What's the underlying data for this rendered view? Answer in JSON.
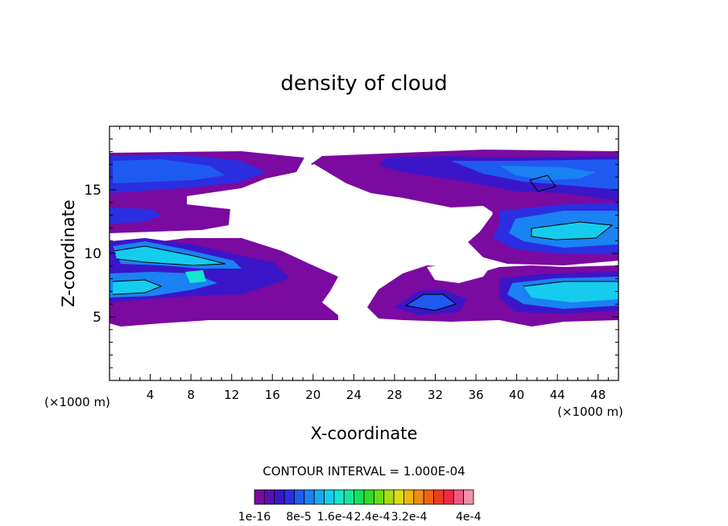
{
  "chart_data": {
    "type": "heatmap",
    "title": "density of cloud",
    "xlabel": "X-coordinate",
    "ylabel": "Z-coordinate",
    "x_units": "(×1000 m)",
    "z_units": "(×1000 m)",
    "xlim": [
      0,
      50
    ],
    "ylim": [
      0,
      20
    ],
    "x_ticks": [
      4,
      8,
      12,
      16,
      20,
      24,
      28,
      32,
      36,
      40,
      44,
      48
    ],
    "y_ticks": [
      5,
      10,
      15
    ],
    "contour_interval_label": "CONTOUR INTERVAL = 1.000E-04",
    "colorbar": {
      "labels": [
        "1e-16",
        "8e-5",
        "1.6e-4",
        "2.4e-4",
        "3.2e-4",
        "4e-4"
      ],
      "colors": [
        "#7a0aa0",
        "#5a0fb0",
        "#3a16c8",
        "#2a2ee0",
        "#1e5af0",
        "#1a82f2",
        "#18a8f0",
        "#16ccee",
        "#14e6d0",
        "#14e69a",
        "#18e060",
        "#30dc28",
        "#68dc14",
        "#a6dc14",
        "#dcdc14",
        "#f0b814",
        "#f08c14",
        "#f06414",
        "#f03c1e",
        "#f02846",
        "#f05a82",
        "#f090a8"
      ]
    },
    "cloud_regions": [
      {
        "name": "upper-left band",
        "x": [
          0,
          20
        ],
        "z": [
          12.5,
          17.8
        ],
        "max_density": "1.2e-4"
      },
      {
        "name": "left lower band",
        "x": [
          0,
          22.5
        ],
        "z": [
          4.5,
          11
        ],
        "max_density": "2.0e-4"
      },
      {
        "name": "upper-right band",
        "x": [
          19.5,
          50
        ],
        "z": [
          10,
          17.8
        ],
        "max_density": "1.8e-4"
      },
      {
        "name": "lower-right band",
        "x": [
          24.5,
          50
        ],
        "z": [
          4.5,
          10
        ],
        "max_density": "2.0e-4"
      }
    ]
  }
}
